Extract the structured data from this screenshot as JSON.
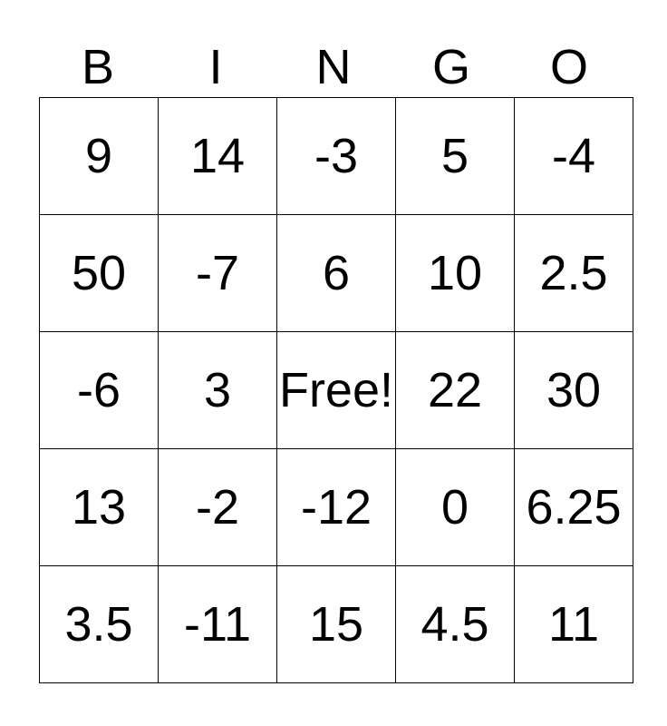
{
  "card_title": "BINGO",
  "header": {
    "letters": [
      "B",
      "I",
      "N",
      "G",
      "O"
    ]
  },
  "grid": {
    "rows": [
      [
        "9",
        "14",
        "-3",
        "5",
        "-4"
      ],
      [
        "50",
        "-7",
        "6",
        "10",
        "2.5"
      ],
      [
        "-6",
        "3",
        "Free!",
        "22",
        "30"
      ],
      [
        "13",
        "-2",
        "-12",
        "0",
        "6.25"
      ],
      [
        "3.5",
        "-11",
        "15",
        "4.5",
        "11"
      ]
    ],
    "free_cell": {
      "row": 2,
      "col": 2,
      "label": "Free!"
    }
  },
  "colors": {
    "text": "#000000",
    "border": "#000000",
    "background": "#ffffff"
  }
}
